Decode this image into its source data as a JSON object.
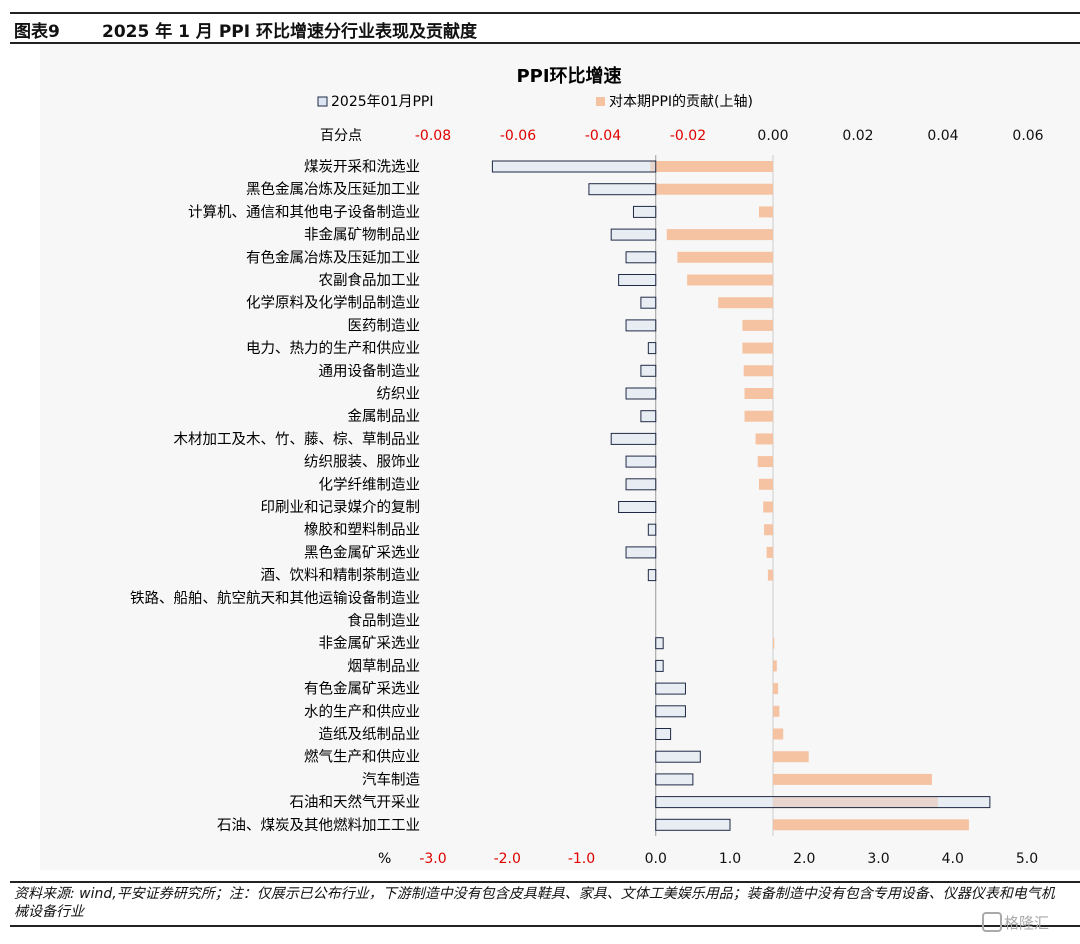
{
  "header": {
    "figure_label": "图表9",
    "title": "2025 年 1 月 PPI 环比增速分行业表现及贡献度"
  },
  "chart_data": {
    "type": "bar",
    "orientation": "horizontal",
    "title": "PPI环比增速",
    "grid": false,
    "legend_position": "top",
    "categories": [
      "煤炭开采和洗选业",
      "黑色金属冶炼及压延加工业",
      "计算机、通信和其他电子设备制造业",
      "非金属矿物制品业",
      "有色金属冶炼及压延加工业",
      "农副食品加工业",
      "化学原料及化学制品制造业",
      "医药制造业",
      "电力、热力的生产和供应业",
      "通用设备制造业",
      "纺织业",
      "金属制品业",
      "木材加工及木、竹、藤、棕、草制品业",
      "纺织服装、服饰业",
      "化学纤维制造业",
      "印刷业和记录媒介的复制",
      "橡胶和塑料制品业",
      "黑色金属矿采选业",
      "酒、饮料和精制茶制造业",
      "铁路、船舶、航空航天和其他运输设备制造业",
      "食品制造业",
      "非金属矿采选业",
      "烟草制品业",
      "有色金属矿采选业",
      "水的生产和供应业",
      "造纸及纸制品业",
      "燃气生产和供应业",
      "汽车制造",
      "石油和天然气开采业",
      "石油、煤炭及其他燃料加工工业"
    ],
    "series": [
      {
        "name": "2025年01月PPI",
        "axis": "bottom",
        "color": "#dce6f2",
        "values": [
          -2.2,
          -0.9,
          -0.3,
          -0.6,
          -0.4,
          -0.5,
          -0.2,
          -0.4,
          -0.1,
          -0.2,
          -0.4,
          -0.2,
          -0.6,
          -0.4,
          -0.4,
          -0.5,
          -0.1,
          -0.4,
          -0.1,
          0.0,
          0.0,
          0.1,
          0.1,
          0.4,
          0.4,
          0.2,
          0.6,
          0.5,
          4.5,
          1.0
        ]
      },
      {
        "name": "对本期PPI的贡献(上轴)",
        "axis": "top",
        "color": "#f6c3a2",
        "values": [
          -0.0289,
          -0.0279,
          -0.0033,
          -0.025,
          -0.0225,
          -0.0202,
          -0.0129,
          -0.0072,
          -0.0072,
          -0.0069,
          -0.0067,
          -0.0067,
          -0.0041,
          -0.0036,
          -0.0033,
          -0.0023,
          -0.0021,
          -0.0015,
          -0.0012,
          0.0,
          0.0,
          0.0003,
          0.0009,
          0.0012,
          0.0015,
          0.0024,
          0.0084,
          0.0374,
          0.0388,
          0.0461
        ]
      }
    ],
    "top_axis": {
      "label": "百分点",
      "ticks": [
        "-0.08",
        "-0.06",
        "-0.04",
        "-0.02",
        "0.00",
        "0.02",
        "0.04",
        "0.06"
      ],
      "negative_tick_color": "#e00000",
      "range": [
        -0.08,
        0.06
      ]
    },
    "bottom_axis": {
      "label": "%",
      "ticks": [
        "-3.0",
        "-2.0",
        "-1.0",
        "0.0",
        "1.0",
        "2.0",
        "3.0",
        "4.0",
        "5.0"
      ],
      "negative_tick_color": "#e00000",
      "range": [
        -3.0,
        5.0
      ]
    }
  },
  "footer": {
    "source_note": "资料来源: wind,平安证券研究所；注：仅展示已公布行业，下游制造中没有包含皮具鞋具、家具、文体工美娱乐用品；装备制造中没有包含专用设备、仪器仪表和电气机械设备行业",
    "watermark": "格隆汇"
  }
}
